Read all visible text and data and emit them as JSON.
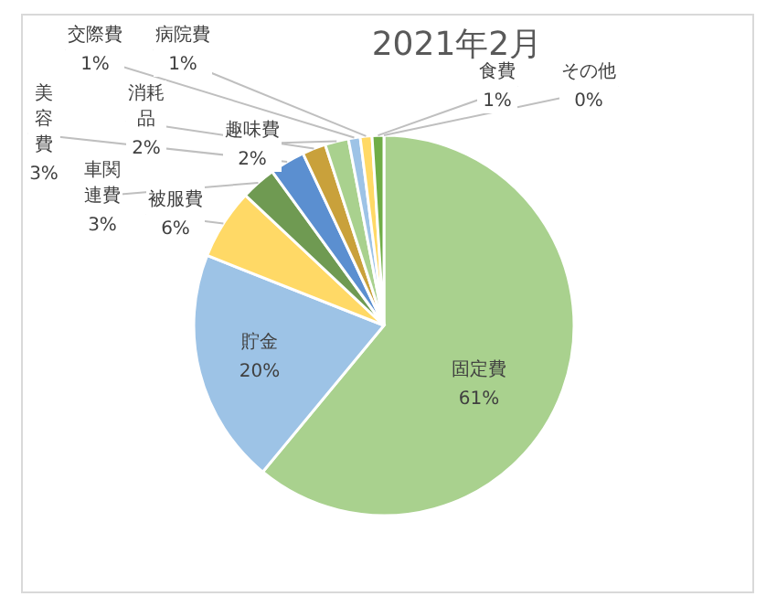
{
  "chart_data": {
    "type": "pie",
    "title": "2021年2月",
    "categories": [
      "固定費",
      "貯金",
      "被服費",
      "車関連費",
      "美容費",
      "消耗品",
      "趣味費",
      "交際費",
      "病院費",
      "食費",
      "その他"
    ],
    "values": [
      61,
      20,
      6,
      3,
      3,
      2,
      2,
      1,
      1,
      1,
      0
    ],
    "value_labels": [
      "61%",
      "20%",
      "6%",
      "3%",
      "3%",
      "2%",
      "2%",
      "1%",
      "1%",
      "1%",
      "0%"
    ],
    "colors": [
      "#a9d18e",
      "#9dc3e6",
      "#ffd966",
      "#6f9a52",
      "#5b8fd0",
      "#c9a13b",
      "#a9d18e",
      "#9dc3e6",
      "#ffd966",
      "#70ad47",
      "#5b9bd5"
    ]
  }
}
